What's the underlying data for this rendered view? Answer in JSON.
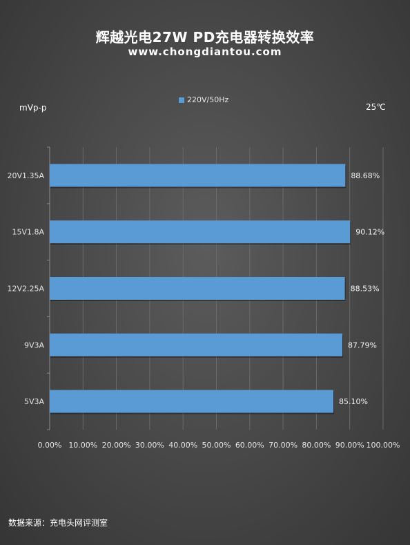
{
  "header": {
    "title": "辉越光电27W PD充电器转换效率",
    "subtitle": "www.chongdiantou.com"
  },
  "labels": {
    "left": "mVp-p",
    "right": "25℃"
  },
  "footer": {
    "source": "数据来源：充电头网评测室"
  },
  "colors": {
    "bar": "#5b9bd5",
    "grid": "#6a6a6a",
    "axis": "#8a8a8a"
  },
  "chart_data": {
    "type": "bar",
    "orientation": "horizontal",
    "categories": [
      "20V1.35A",
      "15V1.8A",
      "12V2.25A",
      "9V3A",
      "5V3A"
    ],
    "series": [
      {
        "name": "220V/50Hz",
        "values": [
          88.68,
          90.12,
          88.53,
          87.79,
          85.1
        ],
        "value_labels": [
          "88.68%",
          "90.12%",
          "88.53%",
          "87.79%",
          "85.10%"
        ]
      }
    ],
    "xlim": [
      0,
      100
    ],
    "x_ticks": [
      "0.00%",
      "10.00%",
      "20.00%",
      "30.00%",
      "40.00%",
      "50.00%",
      "60.00%",
      "70.00%",
      "80.00%",
      "90.00%",
      "100.00%"
    ],
    "grid": true,
    "legend_position": "top"
  }
}
